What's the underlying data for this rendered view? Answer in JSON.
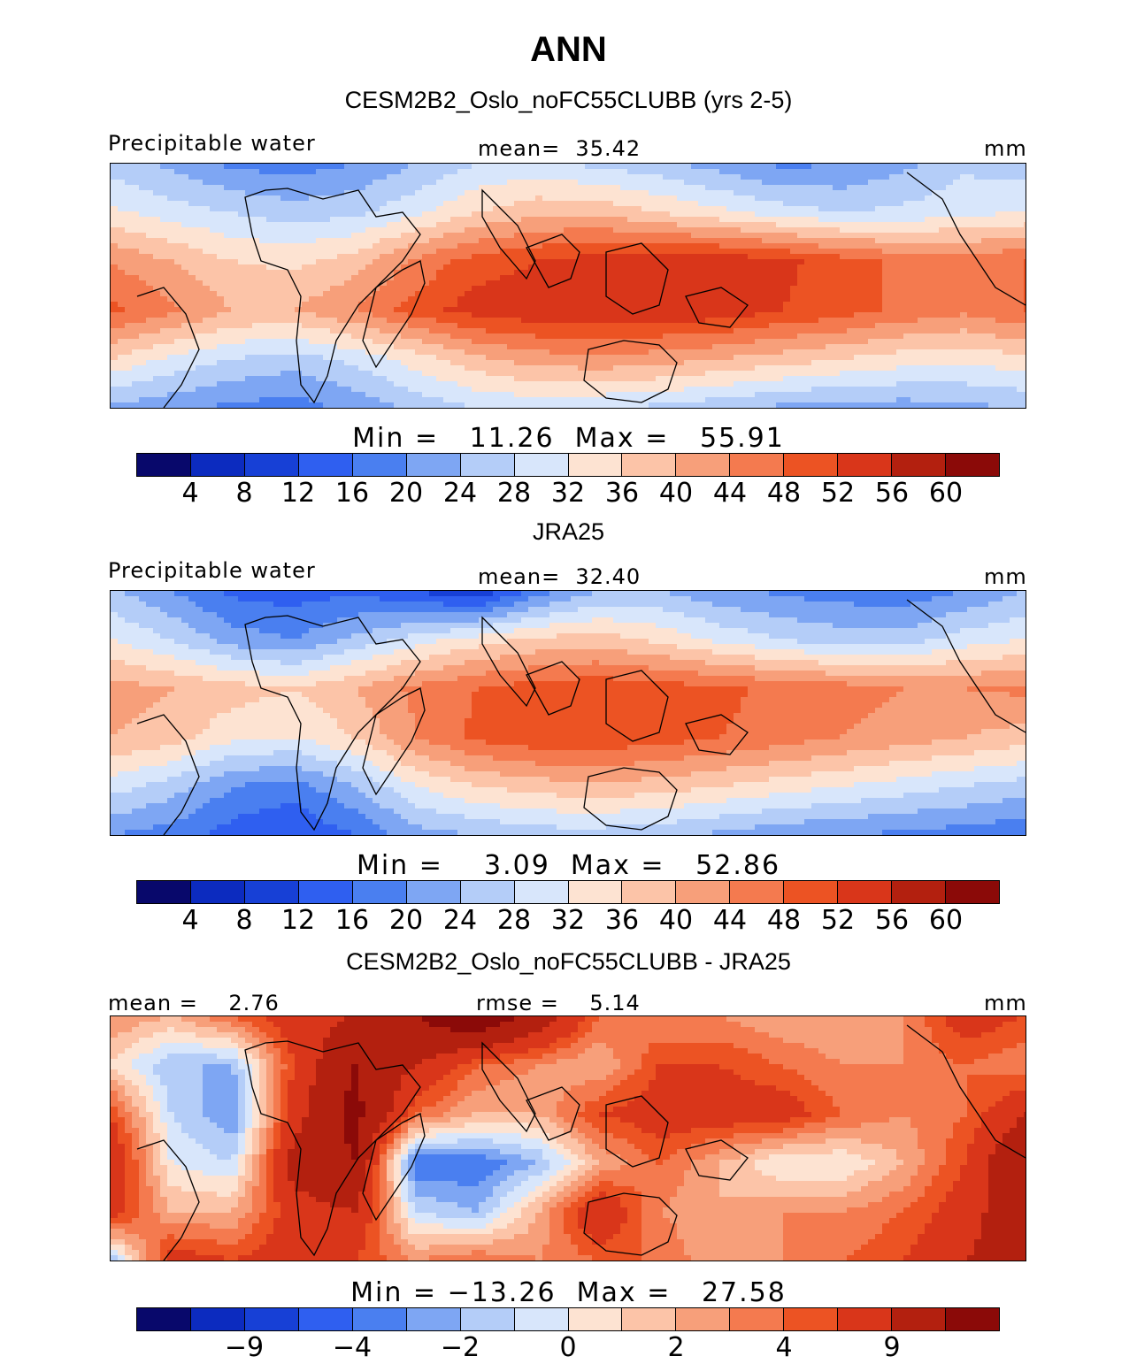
{
  "title": "ANN",
  "panels": [
    {
      "title": "CESM2B2_Oslo_noFC55CLUBB (yrs 2-5)",
      "left_label": "Precipitable water",
      "center_label": "mean=  35.42",
      "right_label": "mm",
      "minmax": "Min =   11.26  Max =   55.91",
      "ticks": [
        "4",
        "8",
        "12",
        "16",
        "20",
        "24",
        "28",
        "32",
        "36",
        "40",
        "44",
        "48",
        "52",
        "56",
        "60"
      ],
      "map_field": "model"
    },
    {
      "title": "JRA25",
      "left_label": "Precipitable water",
      "center_label": "mean=  32.40",
      "right_label": "mm",
      "minmax": "Min =    3.09  Max =   52.86",
      "ticks": [
        "4",
        "8",
        "12",
        "16",
        "20",
        "24",
        "28",
        "32",
        "36",
        "40",
        "44",
        "48",
        "52",
        "56",
        "60"
      ],
      "map_field": "obs"
    },
    {
      "title": "CESM2B2_Oslo_noFC55CLUBB - JRA25",
      "left_label": "mean =    2.76",
      "center_label": "rmse =    5.14",
      "right_label": "mm",
      "minmax": "Min = −13.26  Max =   27.58",
      "ticks": [
        "−9",
        "−4",
        "−2",
        "0",
        "2",
        "4",
        "9"
      ],
      "map_field": "diff"
    }
  ],
  "colors": [
    "#08086b",
    "#0c2bbf",
    "#1740d6",
    "#2f5ff0",
    "#4a7ff0",
    "#7ea6f3",
    "#b4cdf8",
    "#d8e6fb",
    "#fde3d2",
    "#fcc4a8",
    "#f79f7a",
    "#f47a4f",
    "#ec5323",
    "#d9361a",
    "#b3200f",
    "#8b0a08"
  ],
  "chart_data": [
    {
      "type": "heatmap",
      "title": "CESM2B2_Oslo_noFC55CLUBB (yrs 2-5)",
      "variable": "Precipitable water",
      "units": "mm",
      "mean": 35.42,
      "min": 11.26,
      "max": 55.91,
      "contour_levels": [
        4,
        8,
        12,
        16,
        20,
        24,
        28,
        32,
        36,
        40,
        44,
        48,
        52,
        56,
        60
      ],
      "field_sketch": [
        [
          26,
          23,
          19,
          18,
          20,
          24,
          28,
          29,
          27,
          25,
          22,
          19,
          20,
          23,
          27,
          26
        ],
        [
          33,
          30,
          28,
          26,
          27,
          31,
          36,
          39,
          39,
          36,
          33,
          30,
          28,
          29,
          31,
          32
        ],
        [
          44,
          40,
          36,
          35,
          38,
          45,
          50,
          52,
          54,
          55,
          55,
          53,
          50,
          47,
          46,
          48
        ],
        [
          49,
          45,
          40,
          40,
          44,
          50,
          54,
          55,
          55,
          55,
          55,
          52,
          50,
          47,
          45,
          48
        ],
        [
          36,
          31,
          28,
          26,
          29,
          34,
          39,
          42,
          43,
          42,
          40,
          38,
          36,
          34,
          33,
          35
        ],
        [
          23,
          21,
          19,
          18,
          21,
          25,
          28,
          29,
          28,
          27,
          25,
          23,
          22,
          22,
          23,
          24
        ]
      ]
    },
    {
      "type": "heatmap",
      "title": "JRA25",
      "variable": "Precipitable water",
      "units": "mm",
      "mean": 32.4,
      "min": 3.09,
      "max": 52.86,
      "contour_levels": [
        4,
        8,
        12,
        16,
        20,
        24,
        28,
        32,
        36,
        40,
        44,
        48,
        52,
        56,
        60
      ],
      "field_sketch": [
        [
          25,
          20,
          15,
          14,
          15,
          12,
          8,
          18,
          24,
          24,
          21,
          19,
          18,
          17,
          20,
          24
        ],
        [
          32,
          28,
          22,
          20,
          25,
          30,
          34,
          37,
          38,
          35,
          31,
          28,
          26,
          26,
          30,
          32
        ],
        [
          42,
          40,
          38,
          36,
          40,
          45,
          48,
          50,
          51,
          50,
          49,
          47,
          46,
          44,
          44,
          45
        ],
        [
          40,
          38,
          33,
          32,
          36,
          44,
          49,
          51,
          51,
          50,
          48,
          46,
          44,
          42,
          40,
          38
        ],
        [
          30,
          26,
          20,
          18,
          24,
          32,
          36,
          38,
          39,
          38,
          36,
          34,
          32,
          30,
          28,
          26
        ],
        [
          20,
          18,
          14,
          12,
          16,
          22,
          24,
          26,
          26,
          25,
          23,
          21,
          20,
          19,
          18,
          17
        ]
      ]
    },
    {
      "type": "heatmap",
      "title": "CESM2B2_Oslo_noFC55CLUBB - JRA25",
      "units": "mm",
      "mean": 2.76,
      "rmse": 5.14,
      "min": -13.26,
      "max": 27.58,
      "contour_levels": [
        -9,
        -4,
        -2,
        0,
        2,
        4,
        9
      ],
      "field_sketch": [
        [
          2,
          1,
          3,
          5,
          6,
          9,
          12,
          8,
          3,
          2,
          2,
          1,
          1,
          2,
          5,
          4
        ],
        [
          0,
          -3,
          -3,
          4,
          9,
          6,
          3,
          2,
          1,
          4,
          4,
          3,
          2,
          2,
          3,
          2
        ],
        [
          4,
          -2,
          -4,
          5,
          10,
          3,
          1,
          1,
          4,
          5,
          5,
          5,
          3,
          2,
          3,
          6
        ],
        [
          6,
          -1,
          -2,
          7,
          9,
          -5,
          -5,
          -3,
          1,
          3,
          1,
          -1,
          -1,
          1,
          4,
          9
        ],
        [
          5,
          1,
          1,
          5,
          6,
          -2,
          -3,
          1,
          6,
          2,
          1,
          2,
          2,
          3,
          5,
          8
        ],
        [
          -3,
          5,
          4,
          5,
          4,
          2,
          3,
          2,
          3,
          3,
          1,
          2,
          3,
          4,
          6,
          7
        ]
      ]
    }
  ]
}
